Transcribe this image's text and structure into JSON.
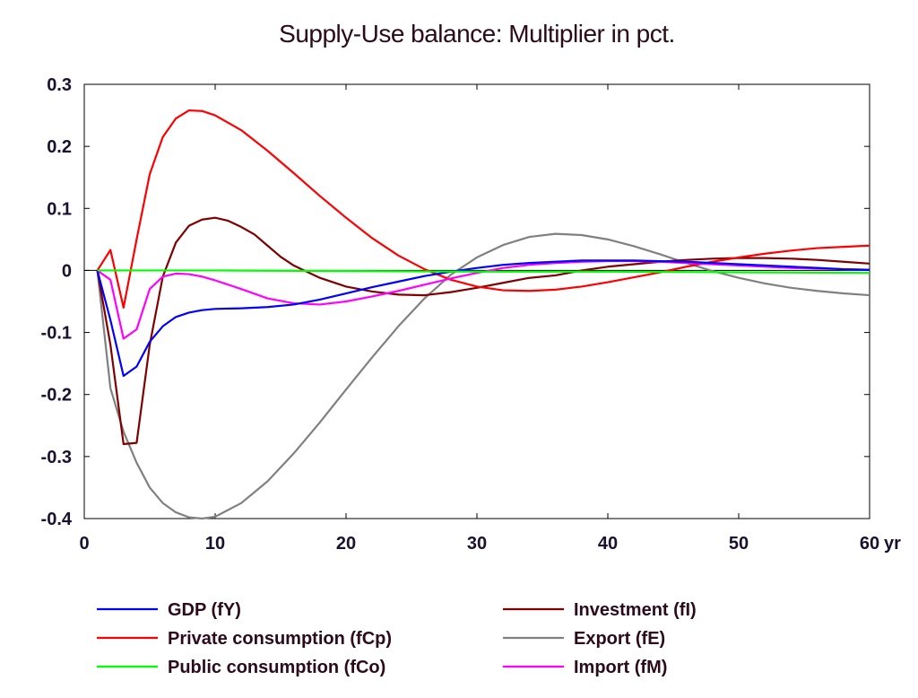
{
  "chart_data": {
    "type": "line",
    "title": "Supply-Use balance: Multiplier in pct.",
    "xlabel": "",
    "ylabel": "",
    "x_unit_suffix": "yr",
    "xlim": [
      0,
      60
    ],
    "ylim": [
      -0.4,
      0.3
    ],
    "xticks": [
      0,
      10,
      20,
      30,
      40,
      50,
      60
    ],
    "yticks": [
      0.3,
      0.2,
      0.1,
      0,
      -0.1,
      -0.2,
      -0.3,
      -0.4
    ],
    "ytick_labels": [
      "0.3",
      "0.2",
      "0.1",
      "0",
      "-0.1",
      "-0.2",
      "-0.3",
      "-0.4"
    ],
    "grid": false,
    "zero_line": true,
    "legend_position": "bottom",
    "series": [
      {
        "name": "GDP (fY)",
        "color": "#0000ff",
        "points": [
          [
            1,
            0
          ],
          [
            2,
            -0.08
          ],
          [
            3,
            -0.17
          ],
          [
            4,
            -0.155
          ],
          [
            5,
            -0.115
          ],
          [
            6,
            -0.09
          ],
          [
            7,
            -0.075
          ],
          [
            8,
            -0.068
          ],
          [
            9,
            -0.064
          ],
          [
            10,
            -0.062
          ],
          [
            12,
            -0.061
          ],
          [
            14,
            -0.059
          ],
          [
            16,
            -0.055
          ],
          [
            18,
            -0.047
          ],
          [
            20,
            -0.037
          ],
          [
            22,
            -0.027
          ],
          [
            24,
            -0.018
          ],
          [
            26,
            -0.009
          ],
          [
            28,
            -0.002
          ],
          [
            30,
            0.004
          ],
          [
            32,
            0.009
          ],
          [
            34,
            0.012
          ],
          [
            36,
            0.014
          ],
          [
            38,
            0.016
          ],
          [
            40,
            0.016
          ],
          [
            42,
            0.016
          ],
          [
            44,
            0.015
          ],
          [
            46,
            0.014
          ],
          [
            48,
            0.012
          ],
          [
            50,
            0.01
          ],
          [
            52,
            0.008
          ],
          [
            54,
            0.006
          ],
          [
            56,
            0.004
          ],
          [
            58,
            0.002
          ],
          [
            60,
            0.001
          ]
        ]
      },
      {
        "name": "Private consumption (fCp)",
        "color": "#ff0000",
        "points": [
          [
            1,
            0
          ],
          [
            2,
            0.033
          ],
          [
            3,
            -0.06
          ],
          [
            4,
            0.05
          ],
          [
            5,
            0.155
          ],
          [
            6,
            0.215
          ],
          [
            7,
            0.245
          ],
          [
            8,
            0.258
          ],
          [
            9,
            0.257
          ],
          [
            10,
            0.25
          ],
          [
            12,
            0.226
          ],
          [
            14,
            0.193
          ],
          [
            16,
            0.157
          ],
          [
            18,
            0.12
          ],
          [
            20,
            0.085
          ],
          [
            22,
            0.052
          ],
          [
            24,
            0.024
          ],
          [
            26,
            0.002
          ],
          [
            28,
            -0.015
          ],
          [
            30,
            -0.026
          ],
          [
            32,
            -0.032
          ],
          [
            34,
            -0.033
          ],
          [
            36,
            -0.031
          ],
          [
            38,
            -0.026
          ],
          [
            40,
            -0.019
          ],
          [
            42,
            -0.011
          ],
          [
            44,
            -0.003
          ],
          [
            46,
            0.006
          ],
          [
            48,
            0.014
          ],
          [
            50,
            0.021
          ],
          [
            52,
            0.027
          ],
          [
            54,
            0.032
          ],
          [
            56,
            0.036
          ],
          [
            58,
            0.038
          ],
          [
            60,
            0.04
          ]
        ]
      },
      {
        "name": "Public consumption (fCo)",
        "color": "#00ff00",
        "points": [
          [
            1,
            0
          ],
          [
            10,
            0
          ],
          [
            20,
            -0.001
          ],
          [
            30,
            -0.002
          ],
          [
            40,
            -0.002
          ],
          [
            50,
            -0.003
          ],
          [
            60,
            -0.004
          ]
        ]
      },
      {
        "name": "Investment (fI)",
        "color": "#800000",
        "points": [
          [
            1,
            0
          ],
          [
            2,
            -0.12
          ],
          [
            3,
            -0.28
          ],
          [
            4,
            -0.278
          ],
          [
            5,
            -0.12
          ],
          [
            6,
            -0.01
          ],
          [
            7,
            0.045
          ],
          [
            8,
            0.072
          ],
          [
            9,
            0.082
          ],
          [
            10,
            0.085
          ],
          [
            11,
            0.08
          ],
          [
            12,
            0.07
          ],
          [
            13,
            0.058
          ],
          [
            14,
            0.04
          ],
          [
            15,
            0.022
          ],
          [
            16,
            0.008
          ],
          [
            18,
            -0.012
          ],
          [
            20,
            -0.026
          ],
          [
            22,
            -0.034
          ],
          [
            24,
            -0.039
          ],
          [
            26,
            -0.04
          ],
          [
            28,
            -0.035
          ],
          [
            30,
            -0.028
          ],
          [
            32,
            -0.02
          ],
          [
            34,
            -0.012
          ],
          [
            36,
            -0.008
          ],
          [
            38,
            0
          ],
          [
            40,
            0.006
          ],
          [
            42,
            0.01
          ],
          [
            44,
            0.014
          ],
          [
            46,
            0.017
          ],
          [
            48,
            0.019
          ],
          [
            50,
            0.02
          ],
          [
            52,
            0.02
          ],
          [
            54,
            0.019
          ],
          [
            56,
            0.017
          ],
          [
            58,
            0.014
          ],
          [
            60,
            0.011
          ]
        ]
      },
      {
        "name": "Export (fE)",
        "color": "#808080",
        "points": [
          [
            1,
            0
          ],
          [
            2,
            -0.19
          ],
          [
            3,
            -0.26
          ],
          [
            4,
            -0.31
          ],
          [
            5,
            -0.35
          ],
          [
            6,
            -0.375
          ],
          [
            7,
            -0.39
          ],
          [
            8,
            -0.398
          ],
          [
            9,
            -0.4
          ],
          [
            10,
            -0.397
          ],
          [
            12,
            -0.375
          ],
          [
            14,
            -0.34
          ],
          [
            16,
            -0.295
          ],
          [
            18,
            -0.245
          ],
          [
            20,
            -0.192
          ],
          [
            22,
            -0.14
          ],
          [
            24,
            -0.09
          ],
          [
            26,
            -0.045
          ],
          [
            28,
            -0.007
          ],
          [
            30,
            0.021
          ],
          [
            32,
            0.041
          ],
          [
            34,
            0.054
          ],
          [
            36,
            0.059
          ],
          [
            38,
            0.057
          ],
          [
            40,
            0.05
          ],
          [
            42,
            0.039
          ],
          [
            44,
            0.026
          ],
          [
            46,
            0.012
          ],
          [
            48,
            -0.001
          ],
          [
            50,
            -0.012
          ],
          [
            52,
            -0.021
          ],
          [
            54,
            -0.028
          ],
          [
            56,
            -0.033
          ],
          [
            58,
            -0.037
          ],
          [
            60,
            -0.04
          ]
        ]
      },
      {
        "name": "Import (fM)",
        "color": "#ff00ff",
        "points": [
          [
            1,
            0
          ],
          [
            2,
            -0.015
          ],
          [
            3,
            -0.11
          ],
          [
            4,
            -0.095
          ],
          [
            5,
            -0.03
          ],
          [
            6,
            -0.01
          ],
          [
            7,
            -0.005
          ],
          [
            8,
            -0.006
          ],
          [
            9,
            -0.01
          ],
          [
            10,
            -0.016
          ],
          [
            12,
            -0.03
          ],
          [
            14,
            -0.045
          ],
          [
            16,
            -0.053
          ],
          [
            18,
            -0.055
          ],
          [
            20,
            -0.05
          ],
          [
            22,
            -0.042
          ],
          [
            24,
            -0.033
          ],
          [
            26,
            -0.023
          ],
          [
            28,
            -0.013
          ],
          [
            30,
            -0.004
          ],
          [
            32,
            0.004
          ],
          [
            34,
            0.009
          ],
          [
            36,
            0.012
          ],
          [
            38,
            0.014
          ],
          [
            40,
            0.015
          ],
          [
            42,
            0.015
          ],
          [
            44,
            0.014
          ],
          [
            46,
            0.012
          ],
          [
            48,
            0.01
          ],
          [
            50,
            0.008
          ],
          [
            52,
            0.006
          ],
          [
            54,
            0.004
          ],
          [
            56,
            0.003
          ],
          [
            58,
            0.002
          ],
          [
            60,
            0.001
          ]
        ]
      }
    ]
  }
}
